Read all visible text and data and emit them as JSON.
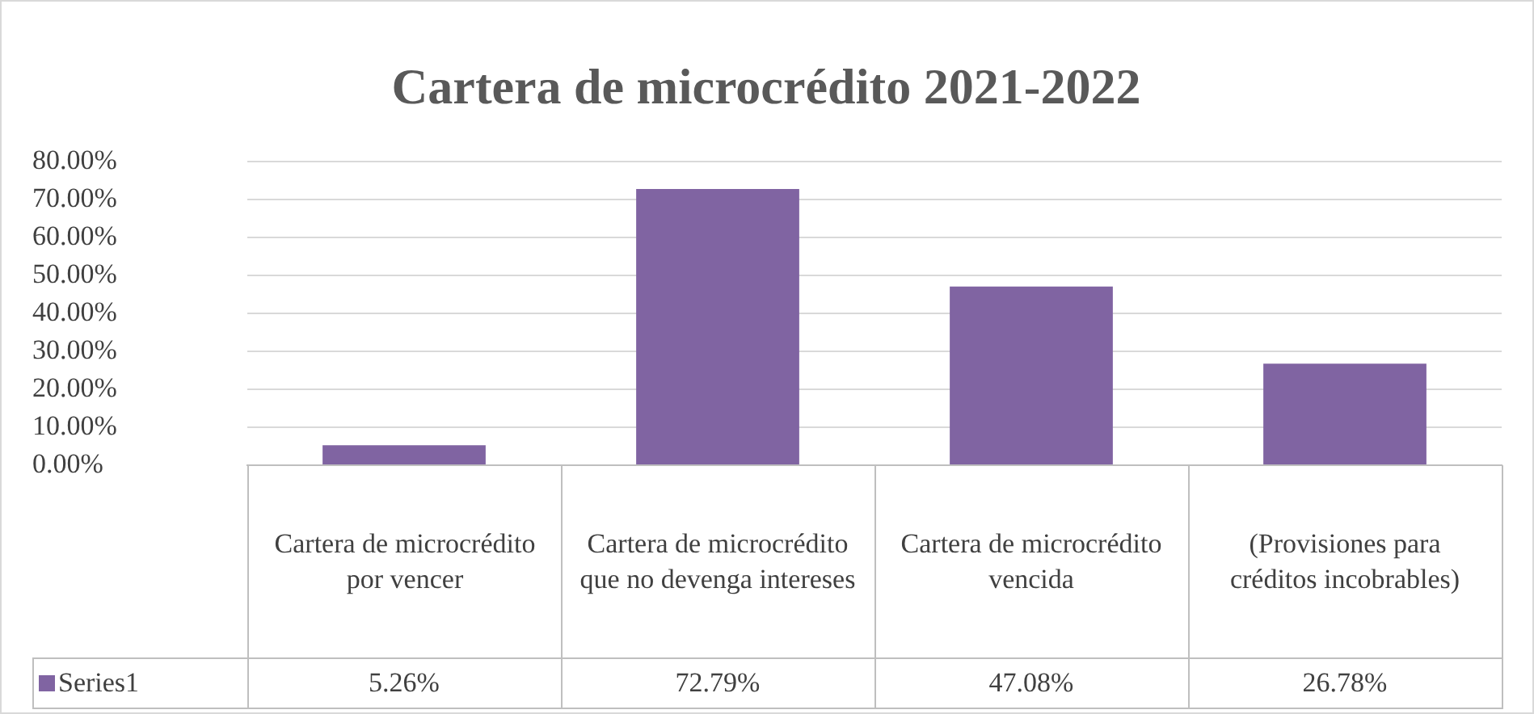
{
  "chart_data": {
    "type": "bar",
    "title": "Cartera de microcrédito 2021-2022",
    "categories": [
      "Cartera de microcrédito por vencer",
      "Cartera de microcrédito que no devenga intereses",
      "Cartera de microcrédito vencida",
      "(Provisiones para créditos incobrables)"
    ],
    "series": [
      {
        "name": "Series1",
        "color": "#8064a2",
        "values": [
          5.26,
          72.79,
          47.08,
          26.78
        ],
        "value_labels": [
          "5.26%",
          "72.79%",
          "47.08%",
          "26.78%"
        ]
      }
    ],
    "ylim": [
      0,
      80
    ],
    "yticks": [
      {
        "value": 0,
        "label": "0.00%"
      },
      {
        "value": 10,
        "label": "10.00%"
      },
      {
        "value": 20,
        "label": "20.00%"
      },
      {
        "value": 30,
        "label": "30.00%"
      },
      {
        "value": 40,
        "label": "40.00%"
      },
      {
        "value": 50,
        "label": "50.00%"
      },
      {
        "value": 60,
        "label": "60.00%"
      },
      {
        "value": 70,
        "label": "70.00%"
      },
      {
        "value": 80,
        "label": "80.00%"
      }
    ],
    "grid": "y",
    "legend": "bottom"
  }
}
